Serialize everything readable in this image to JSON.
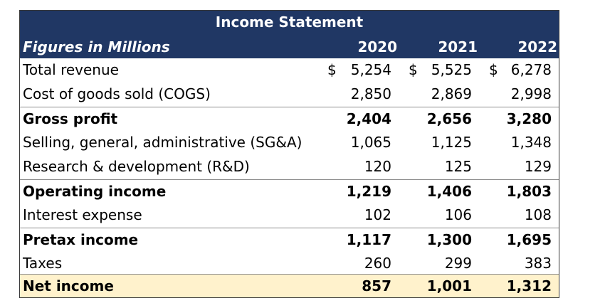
{
  "title": "Income Statement",
  "subheader": "Figures in Millions",
  "years": [
    "2020",
    "2021",
    "2022"
  ],
  "currency_symbol": "$",
  "colors": {
    "header_band": "#203764",
    "header_text": "#ffffff",
    "net_income_fill": "#fff2cc"
  },
  "rows": [
    {
      "label": "Total revenue",
      "values": [
        "5,254",
        "5,525",
        "6,278"
      ]
    },
    {
      "label": "Cost of goods sold (COGS)",
      "values": [
        "2,850",
        "2,869",
        "2,998"
      ]
    },
    {
      "label": "Gross profit",
      "values": [
        "2,404",
        "2,656",
        "3,280"
      ]
    },
    {
      "label": "Selling, general, administrative (SG&A)",
      "values": [
        "1,065",
        "1,125",
        "1,348"
      ]
    },
    {
      "label": "Research & development (R&D)",
      "values": [
        "120",
        "125",
        "129"
      ]
    },
    {
      "label": "Operating income",
      "values": [
        "1,219",
        "1,406",
        "1,803"
      ]
    },
    {
      "label": "Interest expense",
      "values": [
        "102",
        "106",
        "108"
      ]
    },
    {
      "label": "Pretax income",
      "values": [
        "1,117",
        "1,300",
        "1,695"
      ]
    },
    {
      "label": "Taxes",
      "values": [
        "260",
        "299",
        "383"
      ]
    },
    {
      "label": "Net income",
      "values": [
        "857",
        "1,001",
        "1,312"
      ]
    }
  ]
}
